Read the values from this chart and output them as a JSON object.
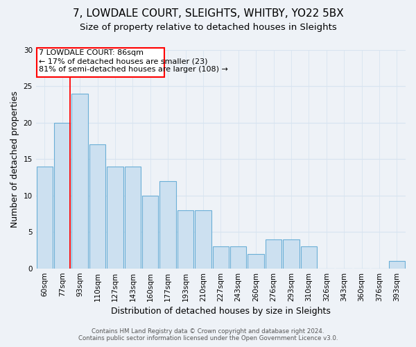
{
  "title": "7, LOWDALE COURT, SLEIGHTS, WHITBY, YO22 5BX",
  "subtitle": "Size of property relative to detached houses in Sleights",
  "xlabel": "Distribution of detached houses by size in Sleights",
  "ylabel": "Number of detached properties",
  "bar_color": "#cce0f0",
  "bar_edge_color": "#6aaed6",
  "categories": [
    "60sqm",
    "77sqm",
    "93sqm",
    "110sqm",
    "127sqm",
    "143sqm",
    "160sqm",
    "177sqm",
    "193sqm",
    "210sqm",
    "227sqm",
    "243sqm",
    "260sqm",
    "276sqm",
    "293sqm",
    "310sqm",
    "326sqm",
    "343sqm",
    "360sqm",
    "376sqm",
    "393sqm"
  ],
  "values": [
    14,
    20,
    24,
    17,
    14,
    14,
    10,
    12,
    8,
    8,
    3,
    3,
    2,
    4,
    4,
    3,
    0,
    0,
    0,
    0,
    1
  ],
  "ylim": [
    0,
    30
  ],
  "yticks": [
    0,
    5,
    10,
    15,
    20,
    25,
    30
  ],
  "ann_line1": "7 LOWDALE COURT: 86sqm",
  "ann_line2": "← 17% of detached houses are smaller (23)",
  "ann_line3": "81% of semi-detached houses are larger (108) →",
  "footnote1": "Contains HM Land Registry data © Crown copyright and database right 2024.",
  "footnote2": "Contains public sector information licensed under the Open Government Licence v3.0.",
  "bg_color": "#eef2f7",
  "grid_color": "#d8e4f0",
  "title_fontsize": 11,
  "subtitle_fontsize": 9.5,
  "label_fontsize": 9,
  "tick_fontsize": 7.5,
  "ann_fontsize": 8
}
